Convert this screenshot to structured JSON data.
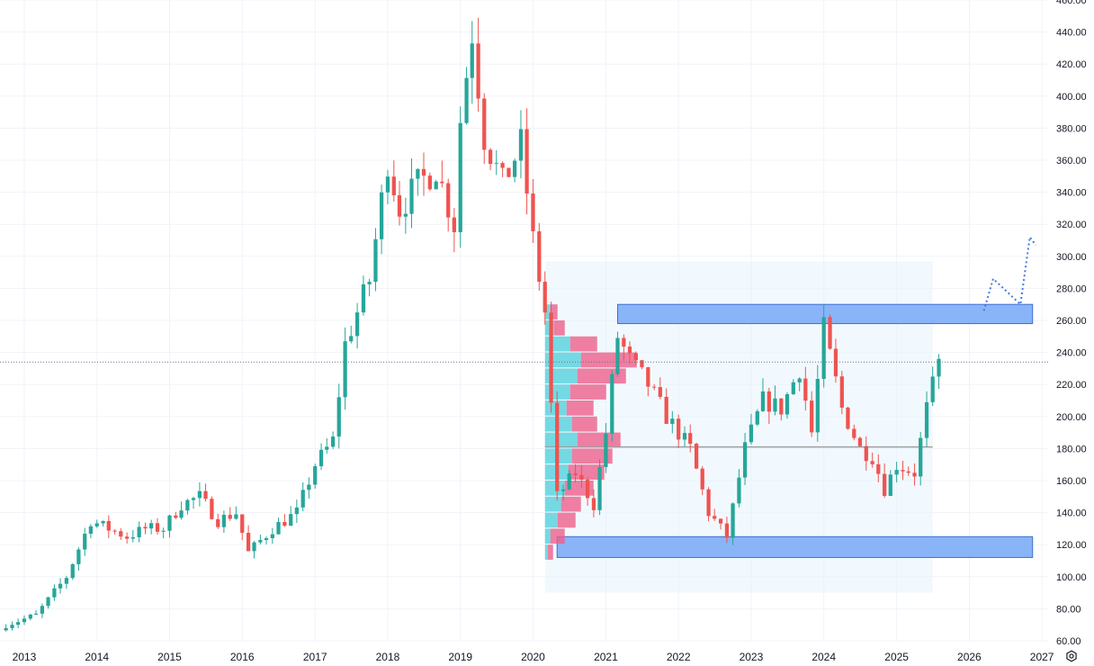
{
  "chart_data": {
    "type": "candlestick",
    "title": "",
    "xlabel": "",
    "ylabel": "",
    "x_range": [
      "2012-09-01",
      "2027-02-01"
    ],
    "y_range": [
      60,
      460
    ],
    "y_ticks": [
      "460.00",
      "440.00",
      "420.00",
      "400.00",
      "380.00",
      "360.00",
      "340.00",
      "320.00",
      "300.00",
      "280.00",
      "260.00",
      "240.00",
      "220.00",
      "200.00",
      "180.00",
      "160.00",
      "140.00",
      "120.00",
      "100.00",
      "80.00",
      "60.00"
    ],
    "x_ticks": [
      "2013",
      "2014",
      "2015",
      "2016",
      "2017",
      "2018",
      "2019",
      "2020",
      "2021",
      "2022",
      "2023",
      "2024",
      "2025",
      "2026",
      "2027"
    ],
    "grid": true,
    "colors": {
      "up": "#26a69a",
      "down": "#ef5350",
      "zone": "#8ab4f8",
      "zone_border": "#3f6fd1",
      "range_box": "#e3f2fd",
      "vp_up": "#5ed3de",
      "vp_down": "#ec5f8b",
      "path": "#3f7be0",
      "poc": "#9e9e9e",
      "price_line": "#6b7280"
    },
    "current_price": 234,
    "anchors": [
      [
        "2012-10-01",
        70
      ],
      [
        "2013-03-01",
        76
      ],
      [
        "2013-08-01",
        100
      ],
      [
        "2013-12-01",
        135
      ],
      [
        "2014-03-01",
        130
      ],
      [
        "2014-06-01",
        125
      ],
      [
        "2014-09-01",
        130
      ],
      [
        "2014-12-01",
        130
      ],
      [
        "2015-03-01",
        145
      ],
      [
        "2015-06-01",
        150
      ],
      [
        "2015-09-01",
        135
      ],
      [
        "2015-12-01",
        140
      ],
      [
        "2016-02-01",
        115
      ],
      [
        "2016-06-01",
        130
      ],
      [
        "2016-10-01",
        140
      ],
      [
        "2017-01-01",
        170
      ],
      [
        "2017-04-01",
        185
      ],
      [
        "2017-06-01",
        245
      ],
      [
        "2017-10-01",
        285
      ],
      [
        "2018-01-01",
        360
      ],
      [
        "2018-03-01",
        330
      ],
      [
        "2018-06-01",
        345
      ],
      [
        "2018-09-01",
        355
      ],
      [
        "2018-12-01",
        320
      ],
      [
        "2019-01-01",
        385
      ],
      [
        "2019-03-01",
        440
      ],
      [
        "2019-05-01",
        375
      ],
      [
        "2019-08-01",
        345
      ],
      [
        "2019-11-01",
        370
      ],
      [
        "2020-01-01",
        310
      ],
      [
        "2020-03-01",
        265
      ],
      [
        "2020-05-01",
        150
      ],
      [
        "2020-08-01",
        165
      ],
      [
        "2020-11-01",
        145
      ],
      [
        "2021-01-01",
        190
      ],
      [
        "2021-03-01",
        250
      ],
      [
        "2021-05-01",
        235
      ],
      [
        "2021-08-01",
        220
      ],
      [
        "2021-11-01",
        200
      ],
      [
        "2022-03-01",
        180
      ],
      [
        "2022-06-01",
        140
      ],
      [
        "2022-09-01",
        125
      ],
      [
        "2022-12-01",
        180
      ],
      [
        "2023-03-01",
        210
      ],
      [
        "2023-06-01",
        205
      ],
      [
        "2023-09-01",
        230
      ],
      [
        "2023-11-01",
        190
      ],
      [
        "2024-01-01",
        255
      ],
      [
        "2024-04-01",
        205
      ],
      [
        "2024-07-01",
        180
      ],
      [
        "2024-09-01",
        175
      ],
      [
        "2024-11-01",
        155
      ],
      [
        "2025-01-01",
        170
      ],
      [
        "2025-04-01",
        165
      ],
      [
        "2025-06-01",
        205
      ],
      [
        "2025-08-01",
        233
      ]
    ],
    "zones": [
      {
        "from": "2021-03-01",
        "to": "2026-11-15",
        "low": 258,
        "high": 270
      },
      {
        "from": "2020-05-01",
        "to": "2026-11-15",
        "low": 112,
        "high": 125
      }
    ],
    "range_box": {
      "from": "2020-03-01",
      "to": "2025-07-01",
      "low": 90,
      "high": 297
    },
    "poc_line": {
      "from": "2020-03-01",
      "to": "2025-07-01",
      "price": 181
    },
    "volume_profile": {
      "anchor": "2020-03-01",
      "rows": [
        {
          "price": 116,
          "up": 3,
          "down": 6
        },
        {
          "price": 126,
          "up": 6,
          "down": 16
        },
        {
          "price": 136,
          "up": 14,
          "down": 20
        },
        {
          "price": 146,
          "up": 18,
          "down": 22
        },
        {
          "price": 156,
          "up": 22,
          "down": 32
        },
        {
          "price": 166,
          "up": 26,
          "down": 40
        },
        {
          "price": 176,
          "up": 30,
          "down": 45
        },
        {
          "price": 186,
          "up": 36,
          "down": 48
        },
        {
          "price": 196,
          "up": 30,
          "down": 28
        },
        {
          "price": 206,
          "up": 24,
          "down": 30
        },
        {
          "price": 216,
          "up": 28,
          "down": 40
        },
        {
          "price": 226,
          "up": 36,
          "down": 54
        },
        {
          "price": 236,
          "up": 40,
          "down": 62
        },
        {
          "price": 246,
          "up": 28,
          "down": 30
        },
        {
          "price": 256,
          "up": 10,
          "down": 12
        },
        {
          "price": 266,
          "up": 6,
          "down": 8
        }
      ]
    },
    "projection_path": [
      [
        "2026-03-15",
        266
      ],
      [
        "2026-05-01",
        286
      ],
      [
        "2026-09-15",
        270
      ],
      [
        "2026-11-01",
        312
      ],
      [
        "2026-12-01",
        307
      ]
    ]
  },
  "ui": {
    "settings_icon": "gear-icon"
  }
}
